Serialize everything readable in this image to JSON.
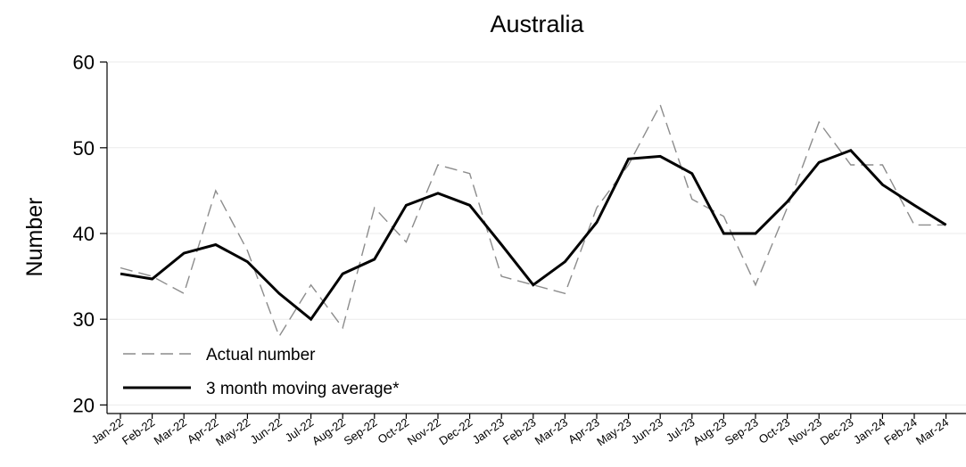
{
  "chart_data": {
    "type": "line",
    "title": "Australia",
    "xlabel": "",
    "ylabel": "Number",
    "ylim": [
      19,
      61
    ],
    "yticks": [
      20,
      30,
      40,
      50,
      60
    ],
    "grid": true,
    "legend_position": "bottom-left",
    "categories": [
      "Jan-22",
      "Feb-22",
      "Mar-22",
      "Apr-22",
      "May-22",
      "Jun-22",
      "Jul-22",
      "Aug-22",
      "Sep-22",
      "Oct-22",
      "Nov-22",
      "Dec-22",
      "Jan-23",
      "Feb-23",
      "Mar-23",
      "Apr-23",
      "May-23",
      "Jun-23",
      "Jul-23",
      "Aug-23",
      "Sep-23",
      "Oct-23",
      "Nov-23",
      "Dec-23",
      "Jan-24",
      "Feb-24",
      "Mar-24"
    ],
    "series": [
      {
        "name": "Actual number",
        "style": "dashed",
        "color": "#8c8c8c",
        "values": [
          36,
          35,
          33,
          45,
          38,
          28,
          34,
          29,
          43,
          39,
          48,
          47,
          35,
          34,
          33,
          43,
          48,
          55,
          44,
          42,
          34,
          43,
          53,
          48,
          48,
          41,
          41
        ]
      },
      {
        "name": "3 month moving average*",
        "style": "solid",
        "color": "#000000",
        "values": [
          35.3,
          34.7,
          37.7,
          38.7,
          36.7,
          33.0,
          30.0,
          35.3,
          37.0,
          43.3,
          44.7,
          43.3,
          38.7,
          34.0,
          36.7,
          41.3,
          48.7,
          49.0,
          47.0,
          40.0,
          40.0,
          43.7,
          48.3,
          49.7,
          45.7,
          43.3,
          41.0
        ]
      }
    ]
  }
}
